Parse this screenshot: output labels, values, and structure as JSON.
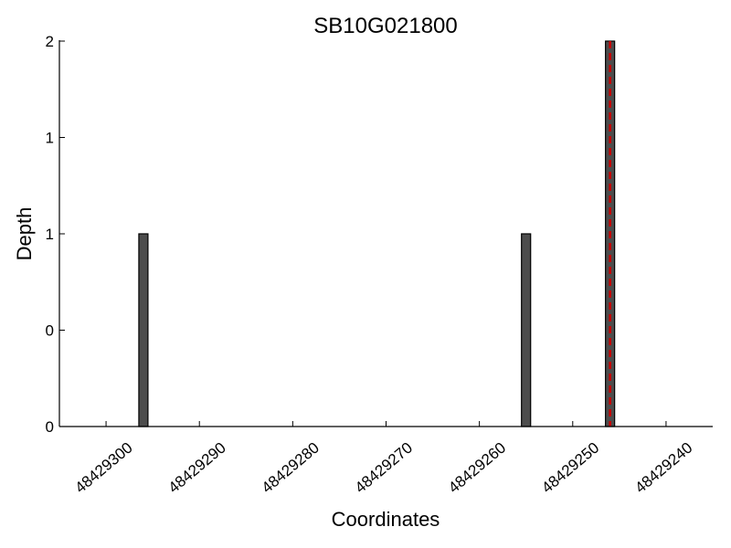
{
  "chart_data": {
    "type": "bar",
    "title": "SB10G021800",
    "xlabel": "Coordinates",
    "ylabel": "Depth",
    "x_axis_reversed": true,
    "xlim": [
      48429305,
      48429235
    ],
    "ylim": [
      0,
      2
    ],
    "x_ticks": [
      48429300,
      48429290,
      48429280,
      48429270,
      48429260,
      48429250,
      48429240
    ],
    "x_tick_labels": [
      "48429300",
      "48429290",
      "48429280",
      "48429270",
      "48429260",
      "48429250",
      "48429240"
    ],
    "y_ticks": [
      0,
      0.5,
      1,
      1.5,
      2
    ],
    "y_tick_labels": [
      "0",
      "0",
      "1",
      "1",
      "2"
    ],
    "bars": [
      {
        "x": 48429296,
        "value": 1
      },
      {
        "x": 48429255,
        "value": 1
      },
      {
        "x": 48429246,
        "value": 2
      }
    ],
    "bar_color": "#4d4d4d",
    "marker_line": {
      "x": 48429246,
      "color": "#cc0000",
      "style": "dashed"
    },
    "grid": false
  }
}
